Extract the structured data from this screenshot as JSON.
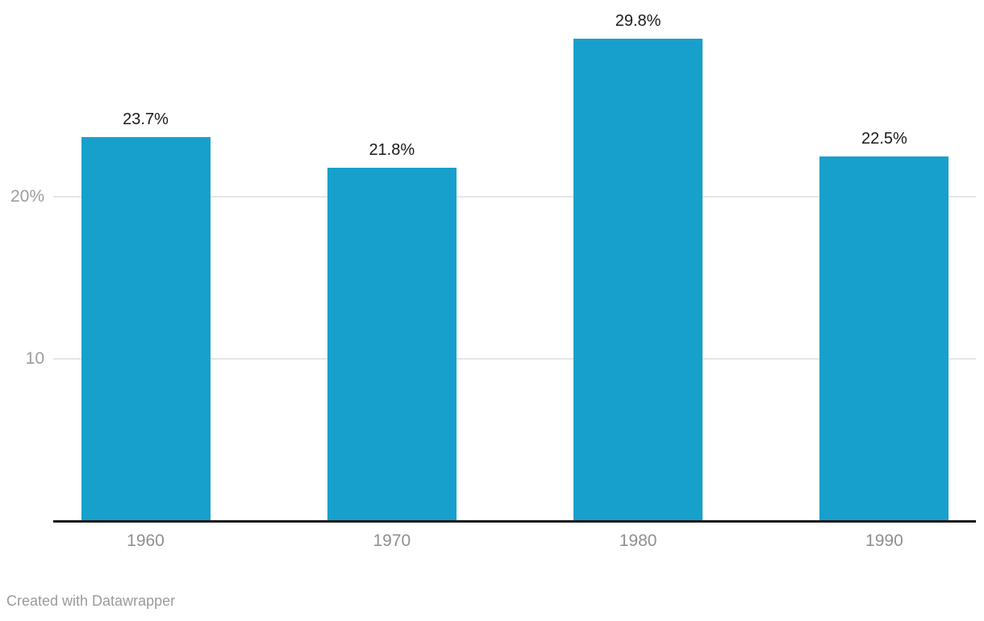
{
  "chart_data": {
    "type": "bar",
    "title": "",
    "xlabel": "",
    "ylabel": "",
    "categories": [
      "1960",
      "1970",
      "1980",
      "1990"
    ],
    "values": [
      23.7,
      21.8,
      29.8,
      22.5
    ],
    "value_labels": [
      "23.7%",
      "21.8%",
      "29.8%",
      "22.5%"
    ],
    "y_ticks": [
      {
        "value": 10,
        "label": "10"
      },
      {
        "value": 20,
        "label": "20%"
      }
    ],
    "ylim": [
      0,
      32
    ],
    "grid": "horizontal",
    "legend": "none",
    "bar_color": "#18a0cc"
  },
  "colors": {
    "bar": "#18a0cc",
    "axis_line": "#1a1a1a",
    "gridline": "#e6e6e6",
    "value_label": "#1a1a1a",
    "tick_label": "#9c9c9c",
    "category_label": "#8f8f8f",
    "credit": "#9b9b9b"
  },
  "footer": {
    "credit": "Created with Datawrapper"
  }
}
